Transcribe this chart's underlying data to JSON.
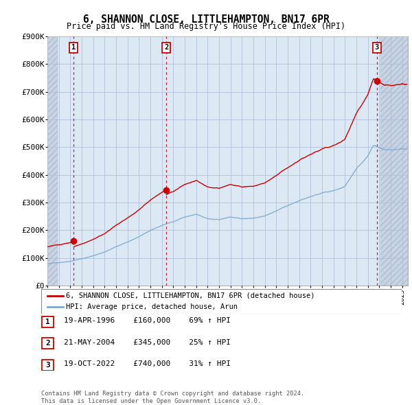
{
  "title": "6, SHANNON CLOSE, LITTLEHAMPTON, BN17 6PR",
  "subtitle": "Price paid vs. HM Land Registry's House Price Index (HPI)",
  "ylim": [
    0,
    900000
  ],
  "yticks": [
    0,
    100000,
    200000,
    300000,
    400000,
    500000,
    600000,
    700000,
    800000,
    900000
  ],
  "ytick_labels": [
    "£0",
    "£100K",
    "£200K",
    "£300K",
    "£400K",
    "£500K",
    "£600K",
    "£700K",
    "£800K",
    "£900K"
  ],
  "xmin": 1994.0,
  "xmax": 2025.5,
  "sale_dates": [
    1996.29,
    2004.38,
    2022.79
  ],
  "sale_prices": [
    160000,
    345000,
    740000
  ],
  "sale_labels": [
    "1",
    "2",
    "3"
  ],
  "legend_line1": "6, SHANNON CLOSE, LITTLEHAMPTON, BN17 6PR (detached house)",
  "legend_line2": "HPI: Average price, detached house, Arun",
  "table_rows": [
    [
      "1",
      "19-APR-1996",
      "£160,000",
      "69% ↑ HPI"
    ],
    [
      "2",
      "21-MAY-2004",
      "£345,000",
      "25% ↑ HPI"
    ],
    [
      "3",
      "19-OCT-2022",
      "£740,000",
      "31% ↑ HPI"
    ]
  ],
  "footer": "Contains HM Land Registry data © Crown copyright and database right 2024.\nThis data is licensed under the Open Government Licence v3.0.",
  "red_color": "#cc0000",
  "blue_color": "#7aaad0",
  "chart_bg": "#dde8f5",
  "hatch_bg": "#c8d4e4",
  "grid_color": "#b0c0d8",
  "border_color": "#aaaaaa"
}
